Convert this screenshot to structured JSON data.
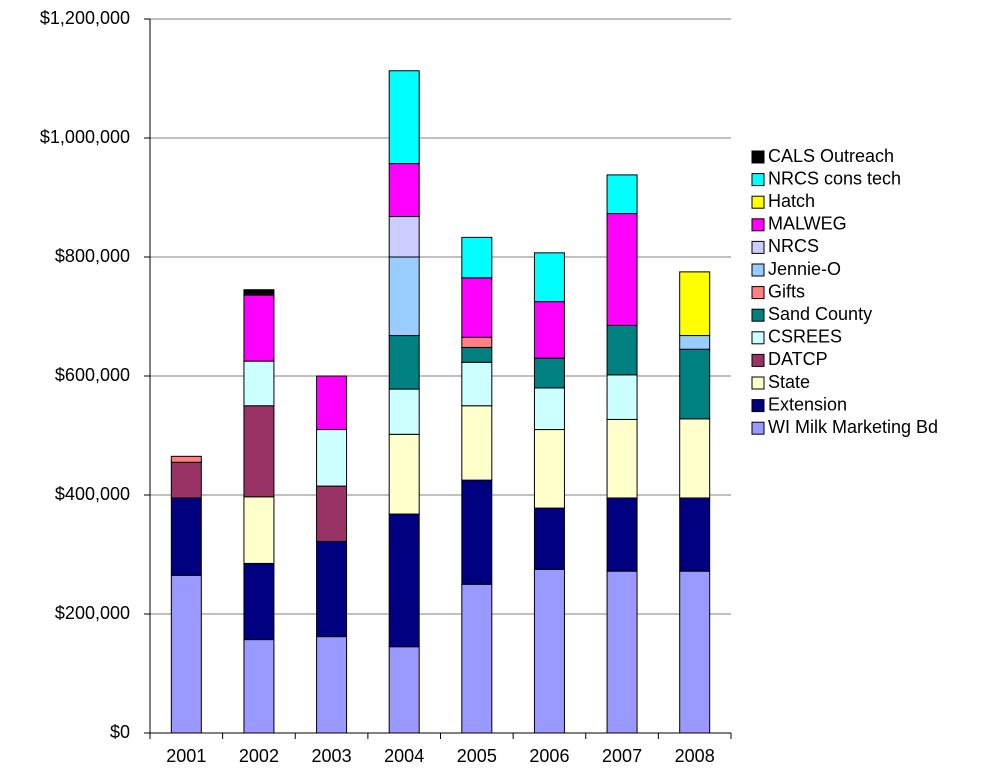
{
  "chart_data": {
    "type": "stacked_bar",
    "categories": [
      "2001",
      "2002",
      "2003",
      "2004",
      "2005",
      "2006",
      "2007",
      "2008"
    ],
    "series": [
      {
        "name": "WI Milk Marketing Bd",
        "color": "#9999ff",
        "values": [
          265,
          157,
          162,
          145,
          250,
          275,
          272,
          272
        ]
      },
      {
        "name": "Extension",
        "color": "#000080",
        "values": [
          130,
          128,
          160,
          223,
          175,
          103,
          123,
          123
        ]
      },
      {
        "name": "State",
        "color": "#ffffcc",
        "values": [
          0,
          112,
          0,
          134,
          125,
          132,
          132,
          133
        ]
      },
      {
        "name": "DATCP",
        "color": "#993366",
        "values": [
          60,
          153,
          93,
          0,
          0,
          0,
          0,
          0
        ]
      },
      {
        "name": "CSREES",
        "color": "#ccffff",
        "values": [
          0,
          75,
          95,
          76,
          73,
          70,
          75,
          0
        ]
      },
      {
        "name": "Sand County",
        "color": "#008080",
        "values": [
          0,
          0,
          0,
          90,
          25,
          50,
          83,
          117
        ]
      },
      {
        "name": "Gifts",
        "color": "#ff8080",
        "values": [
          10,
          0,
          0,
          0,
          17,
          0,
          0,
          0
        ]
      },
      {
        "name": "Jennie-O",
        "color": "#99ccff",
        "values": [
          0,
          0,
          0,
          132,
          0,
          0,
          0,
          23
        ]
      },
      {
        "name": "NRCS",
        "color": "#ccccff",
        "values": [
          0,
          0,
          0,
          68,
          0,
          0,
          0,
          0
        ]
      },
      {
        "name": "MALWEG",
        "color": "#ff00ff",
        "values": [
          0,
          111,
          90,
          89,
          100,
          95,
          188,
          0
        ]
      },
      {
        "name": "Hatch",
        "color": "#ffff00",
        "values": [
          0,
          0,
          0,
          0,
          0,
          0,
          0,
          107
        ]
      },
      {
        "name": "NRCS cons tech",
        "color": "#00ffff",
        "values": [
          0,
          0,
          0,
          156,
          68,
          82,
          65,
          0
        ]
      },
      {
        "name": "CALS Outreach",
        "color": "#000000",
        "values": [
          0,
          9,
          0,
          0,
          0,
          0,
          0,
          0
        ]
      }
    ],
    "value_scale": 1000,
    "ylim": [
      0,
      1200000
    ],
    "yticks": [
      {
        "value": 0,
        "label": "$0"
      },
      {
        "value": 200000,
        "label": "$200,000"
      },
      {
        "value": 400000,
        "label": "$400,000"
      },
      {
        "value": 600000,
        "label": "$600,000"
      },
      {
        "value": 800000,
        "label": "$800,000"
      },
      {
        "value": 1000000,
        "label": "$1,000,000"
      },
      {
        "value": 1200000,
        "label": "$1,200,000"
      }
    ],
    "grid": true,
    "legend": "right"
  }
}
